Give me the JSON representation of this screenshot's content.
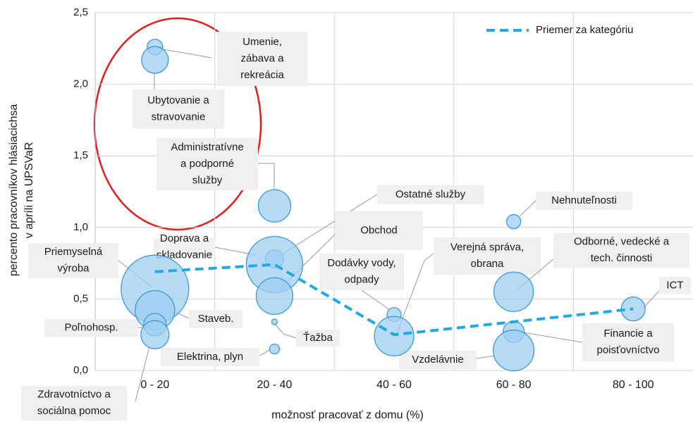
{
  "chart_data": {
    "type": "bubble",
    "ylabel": [
      "percento pracovníkov hlásiacichsa",
      "v apríli na UPSVaR"
    ],
    "xlabel": "možnosť pracovať z domu (%)",
    "xlim": [
      0,
      100
    ],
    "ylim": [
      0,
      2.5
    ],
    "xticks": [
      {
        "value": 10,
        "label": "0 - 20"
      },
      {
        "value": 30,
        "label": "20 - 40"
      },
      {
        "value": 50,
        "label": "40 - 60"
      },
      {
        "value": 70,
        "label": "60 - 80"
      },
      {
        "value": 90,
        "label": "80 - 100"
      }
    ],
    "yticks": [
      {
        "value": 0,
        "label": "0,0"
      },
      {
        "value": 0.5,
        "label": "0,5"
      },
      {
        "value": 1,
        "label": "1,0"
      },
      {
        "value": 1.5,
        "label": "1,5"
      },
      {
        "value": 2,
        "label": "2,0"
      },
      {
        "value": 2.5,
        "label": "2,5"
      }
    ],
    "grid": true,
    "bubble_color": "#9fcff2",
    "bubble_edge": "#3b9ad8",
    "bubbles": [
      {
        "label": [
          "Umenie,",
          "zábava a",
          "rekreácia"
        ],
        "x": 10,
        "y": 2.26,
        "size": 11
      },
      {
        "label": [
          "Ubytovanie a",
          "stravovanie"
        ],
        "x": 10,
        "y": 2.17,
        "size": 19
      },
      {
        "label": [
          "Administratívne",
          "a podporné",
          "služby"
        ],
        "x": 30,
        "y": 1.15,
        "size": 23
      },
      {
        "label": [
          "Ostatné služby"
        ],
        "x": 30,
        "y": 0.78,
        "size": 13
      },
      {
        "label": [
          "Obchod"
        ],
        "x": 30,
        "y": 0.74,
        "size": 40
      },
      {
        "label": [
          "Doprava a",
          "skladovanie"
        ],
        "x": 30,
        "y": 0.52,
        "size": 26
      },
      {
        "label": [
          "Priemyselná",
          "výroba"
        ],
        "x": 10,
        "y": 0.57,
        "size": 48
      },
      {
        "label": [
          "Dodávky vody,",
          "odpady"
        ],
        "x": 50,
        "y": 0.39,
        "size": 10
      },
      {
        "label": [
          "Verejná správa,",
          "obrana"
        ],
        "x": 50,
        "y": 0.24,
        "size": 28
      },
      {
        "label": [
          "Nehnuteľnosti"
        ],
        "x": 70,
        "y": 1.04,
        "size": 10
      },
      {
        "label": [
          "Odborné, vedecké a",
          "tech. činnosti"
        ],
        "x": 70,
        "y": 0.55,
        "size": 28
      },
      {
        "label": [
          "ICT"
        ],
        "x": 90,
        "y": 0.43,
        "size": 17
      },
      {
        "label": [
          "Staveb."
        ],
        "x": 10,
        "y": 0.42,
        "size": 28
      },
      {
        "label": [
          "Poľnohosp."
        ],
        "x": 10,
        "y": 0.32,
        "size": 16
      },
      {
        "label": [
          "Ťažba"
        ],
        "x": 30,
        "y": 0.34,
        "size": 4
      },
      {
        "label": [
          "Elektrina, plyn"
        ],
        "x": 30,
        "y": 0.15,
        "size": 7
      },
      {
        "label": [
          "Financie a",
          "poisťovníctvo"
        ],
        "x": 70,
        "y": 0.27,
        "size": 15
      },
      {
        "label": [
          "Vzdelávnie"
        ],
        "x": 70,
        "y": 0.14,
        "size": 29
      },
      {
        "label": [
          "Zdravotníctvo a",
          "sociálna pomoc"
        ],
        "x": 10,
        "y": 0.25,
        "size": 20
      }
    ],
    "series": [
      {
        "name": "Priemer za kategóriu",
        "color": "#22a8e2",
        "x": [
          10,
          30,
          50,
          70,
          90
        ],
        "values": [
          0.69,
          0.74,
          0.25,
          0.34,
          0.43
        ]
      }
    ],
    "legend": "upper right"
  }
}
